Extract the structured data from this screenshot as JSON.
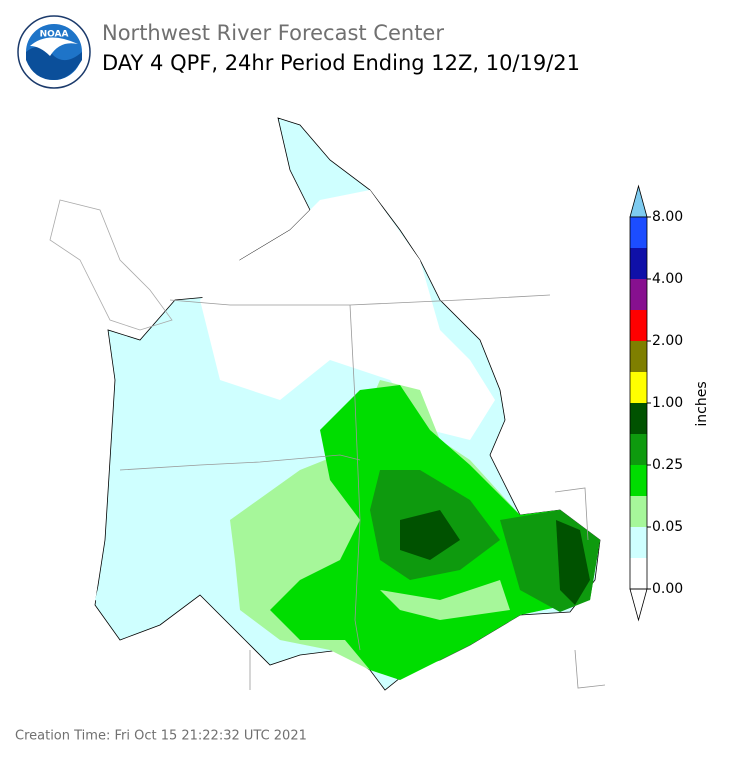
{
  "header": {
    "title": "Northwest River Forecast Center",
    "subtitle": "DAY 4 QPF, 24hr Period Ending 12Z, 10/19/21",
    "logo_text": "NOAA"
  },
  "legend": {
    "label": "inches",
    "over_color": "#7ecbf0",
    "under_color": "#ffffff",
    "bin_colors": [
      "#1c4dff",
      "#0f10a8",
      "#87108f",
      "#ff0000",
      "#7f7f00",
      "#ffff00",
      "#005200",
      "#0e9a0e",
      "#00dd00",
      "#a6f79a",
      "#cfffff",
      "#ffffff"
    ],
    "tick_labels": [
      "8.00",
      "4.00",
      "2.00",
      "1.00",
      "0.25",
      "0.05",
      "0.00"
    ]
  },
  "footer": {
    "creation_time": "Creation Time: Fri Oct 15 21:22:32 UTC 2021"
  }
}
